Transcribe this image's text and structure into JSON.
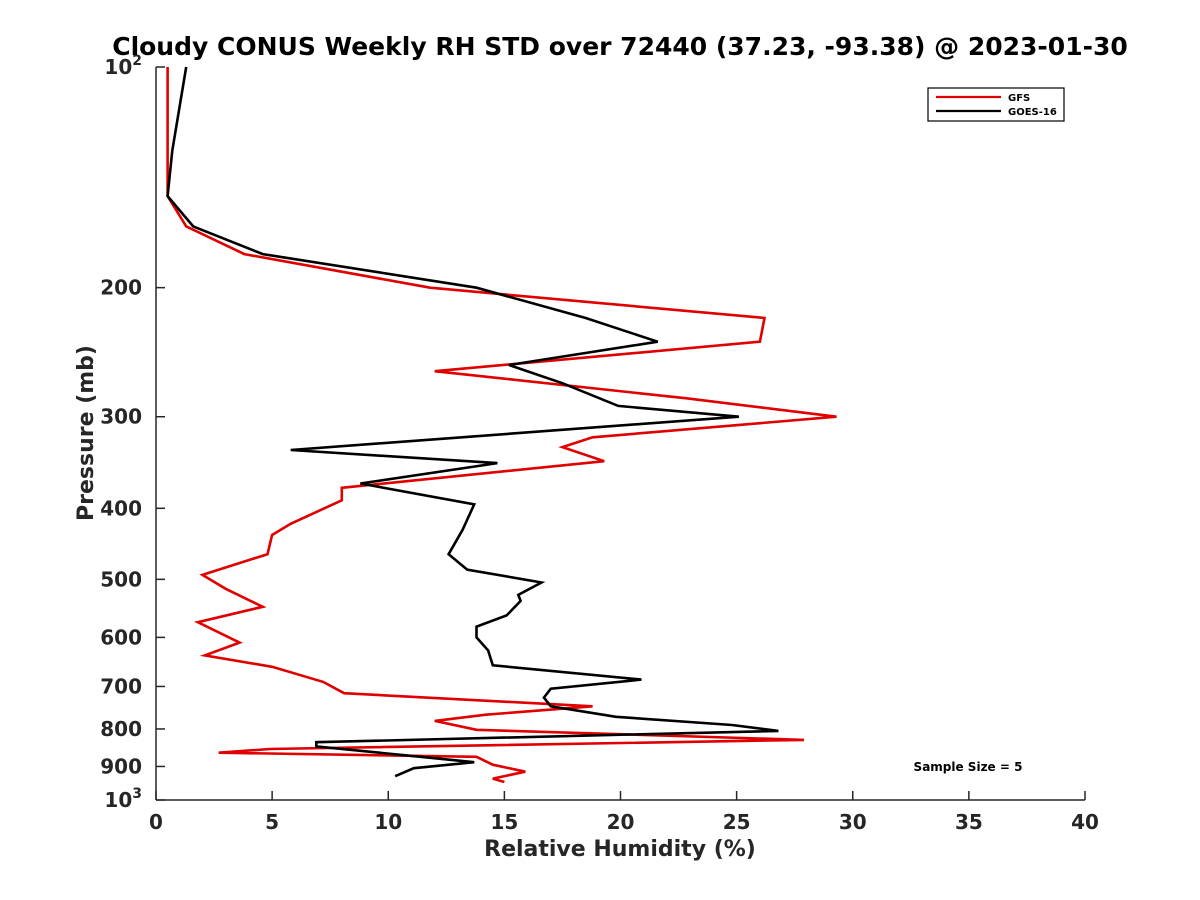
{
  "chart_data": {
    "type": "line",
    "title": "Cloudy CONUS Weekly RH STD over 72440 (37.23, -93.38) @ 2023-01-30",
    "xlabel": "Relative Humidity (%)",
    "ylabel": "Pressure (mb)",
    "xlim": [
      0,
      40
    ],
    "ylim": [
      100,
      1000
    ],
    "y_scale": "log",
    "y_reversed": true,
    "grid": false,
    "legend_position": "top-right",
    "x_ticks": [
      0,
      5,
      10,
      15,
      20,
      25,
      30,
      35,
      40
    ],
    "x_tick_labels": [
      "0",
      "5",
      "10",
      "15",
      "20",
      "25",
      "30",
      "35",
      "40"
    ],
    "y_ticks": [
      100,
      200,
      300,
      400,
      500,
      600,
      700,
      800,
      900,
      1000
    ],
    "y_tick_labels": [
      {
        "base": "10",
        "exp": "2"
      },
      {
        "base": "200",
        "exp": ""
      },
      {
        "base": "300",
        "exp": ""
      },
      {
        "base": "400",
        "exp": ""
      },
      {
        "base": "500",
        "exp": ""
      },
      {
        "base": "600",
        "exp": ""
      },
      {
        "base": "700",
        "exp": ""
      },
      {
        "base": "800",
        "exp": ""
      },
      {
        "base": "900",
        "exp": ""
      },
      {
        "base": "10",
        "exp": "3"
      }
    ],
    "annotation": "Sample Size = 5",
    "series": [
      {
        "name": "GFS",
        "color": "#e00000",
        "points": [
          [
            0.5,
            100
          ],
          [
            0.5,
            150
          ],
          [
            1.3,
            165
          ],
          [
            3.8,
            180
          ],
          [
            11.8,
            200
          ],
          [
            26.2,
            220
          ],
          [
            26.0,
            237
          ],
          [
            12.0,
            260
          ],
          [
            22.8,
            283
          ],
          [
            29.3,
            300
          ],
          [
            18.8,
            320
          ],
          [
            17.5,
            330
          ],
          [
            19.3,
            345
          ],
          [
            8.0,
            375
          ],
          [
            8.0,
            390
          ],
          [
            5.8,
            420
          ],
          [
            5.0,
            435
          ],
          [
            4.8,
            462
          ],
          [
            2.0,
            493
          ],
          [
            3.0,
            515
          ],
          [
            4.6,
            545
          ],
          [
            1.8,
            572
          ],
          [
            3.6,
            610
          ],
          [
            2.1,
            635
          ],
          [
            5.0,
            658
          ],
          [
            7.2,
            690
          ],
          [
            8.1,
            715
          ],
          [
            18.8,
            745
          ],
          [
            14.2,
            765
          ],
          [
            12.0,
            780
          ],
          [
            13.8,
            802
          ],
          [
            27.9,
            828
          ],
          [
            4.9,
            852
          ],
          [
            2.7,
            862
          ],
          [
            13.8,
            873
          ],
          [
            14.5,
            895
          ],
          [
            15.9,
            915
          ],
          [
            14.5,
            935
          ],
          [
            15.0,
            945
          ]
        ]
      },
      {
        "name": "GOES-16",
        "color": "#000000",
        "points": [
          [
            1.3,
            100
          ],
          [
            0.7,
            130
          ],
          [
            0.5,
            150
          ],
          [
            1.6,
            165
          ],
          [
            4.6,
            180
          ],
          [
            13.8,
            200
          ],
          [
            18.5,
            220
          ],
          [
            21.6,
            237
          ],
          [
            15.2,
            255
          ],
          [
            17.5,
            270
          ],
          [
            19.9,
            290
          ],
          [
            25.1,
            300
          ],
          [
            5.8,
            333
          ],
          [
            14.7,
            347
          ],
          [
            8.8,
            370
          ],
          [
            13.7,
            395
          ],
          [
            13.2,
            428
          ],
          [
            12.6,
            462
          ],
          [
            13.4,
            485
          ],
          [
            16.6,
            505
          ],
          [
            15.6,
            525
          ],
          [
            15.7,
            535
          ],
          [
            15.1,
            560
          ],
          [
            13.8,
            580
          ],
          [
            13.8,
            600
          ],
          [
            14.3,
            625
          ],
          [
            14.5,
            655
          ],
          [
            20.9,
            685
          ],
          [
            17.0,
            705
          ],
          [
            16.7,
            725
          ],
          [
            17.0,
            745
          ],
          [
            19.8,
            770
          ],
          [
            24.8,
            790
          ],
          [
            26.8,
            805
          ],
          [
            6.9,
            834
          ],
          [
            6.9,
            845
          ],
          [
            10.9,
            870
          ],
          [
            13.7,
            888
          ],
          [
            11.1,
            905
          ],
          [
            10.3,
            928
          ]
        ]
      }
    ]
  }
}
